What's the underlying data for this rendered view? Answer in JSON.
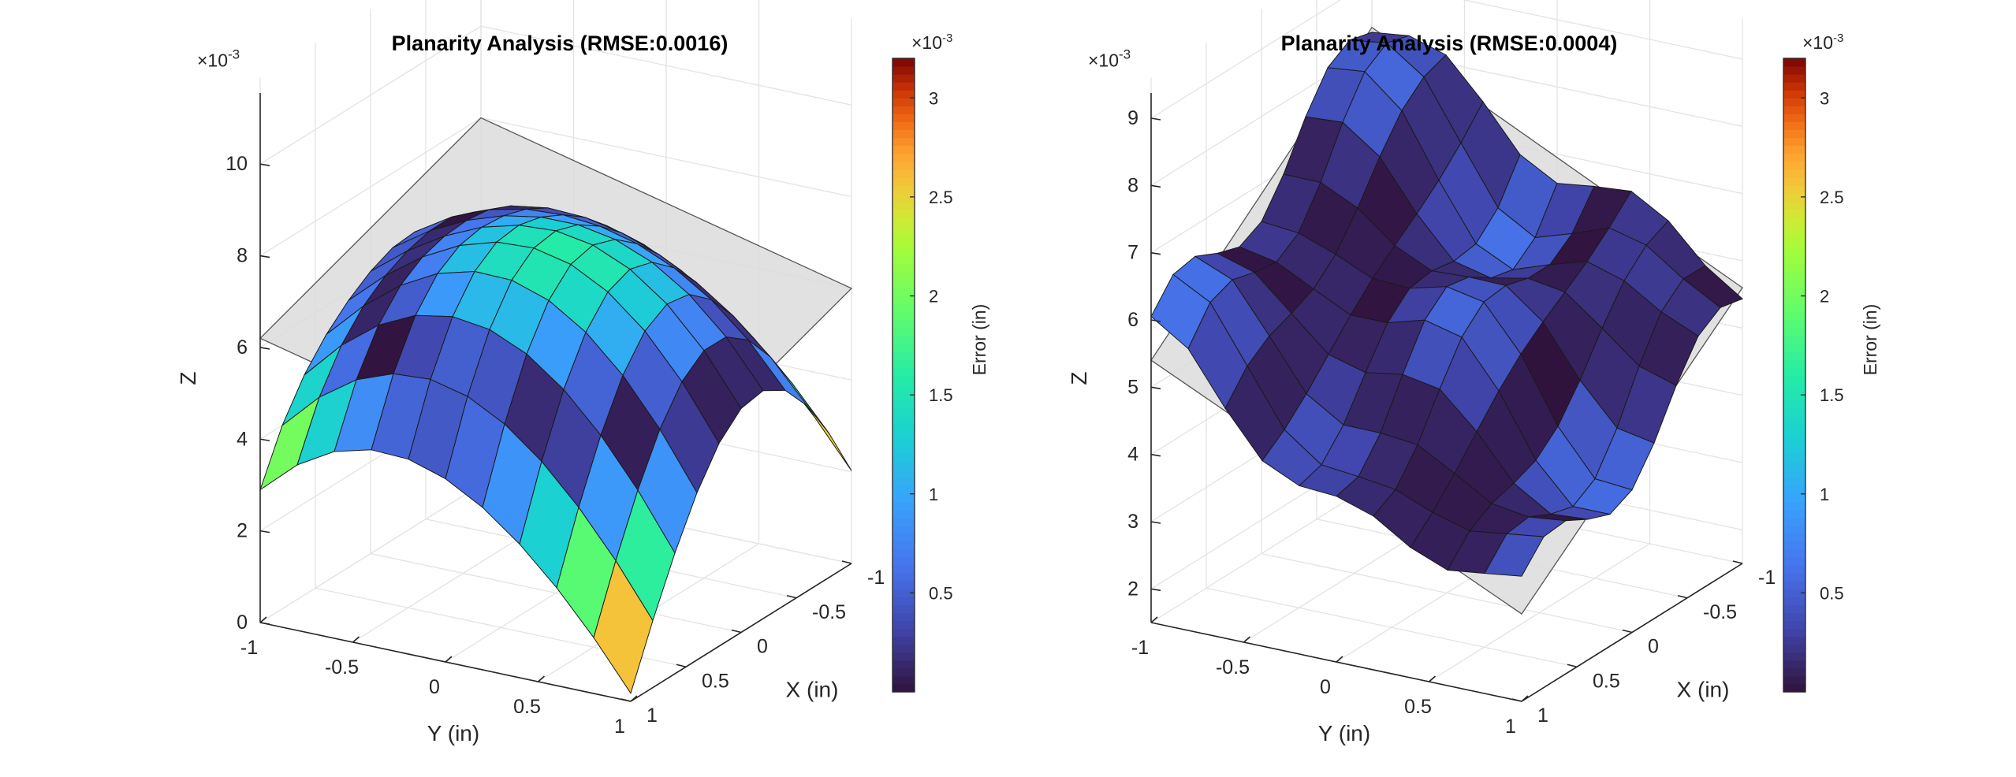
{
  "chart_data": [
    {
      "type": "surface",
      "title": "Planarity Analysis (RMSE:0.0016)",
      "xlabel": "X (in)",
      "ylabel": "Y (in)",
      "zlabel": "Z",
      "z_exponent_label": "×10",
      "z_exponent_power": "-3",
      "x_ticks": [
        "-1",
        "-0.5",
        "0",
        "0.5",
        "1"
      ],
      "y_ticks": [
        "-1",
        "-0.5",
        "0",
        "0.5",
        "1"
      ],
      "z_ticks": [
        "0",
        "2",
        "4",
        "6",
        "8",
        "10"
      ],
      "zlim": [
        0,
        11
      ],
      "xlim": [
        -1,
        1
      ],
      "ylim": [
        -1,
        1
      ],
      "grid": true,
      "colormap": "turbo",
      "colorbar": {
        "label": "Error (in)",
        "exponent_label": "×10",
        "exponent_power": "-3",
        "ticks": [
          "0.5",
          "1",
          "1.5",
          "2",
          "2.5",
          "3"
        ],
        "range": [
          0,
          3.2
        ]
      },
      "fit_plane": {
        "z_at_corners": {
          "x-1_y-1": 8.0,
          "x-1_y1": 6.0,
          "x1_y-1": 6.2,
          "x1_y1": 4.2
        },
        "color": "#dcdcdc"
      },
      "surface_z_range": [
        0.5,
        9.6
      ],
      "surface_shape": "dome"
    },
    {
      "type": "surface",
      "title": "Planarity Analysis (RMSE:0.0004)",
      "xlabel": "X (in)",
      "ylabel": "Y (in)",
      "zlabel": "Z",
      "z_exponent_label": "×10",
      "z_exponent_power": "-3",
      "x_ticks": [
        "-1",
        "-0.5",
        "0",
        "0.5",
        "1"
      ],
      "y_ticks": [
        "-1",
        "-0.5",
        "0",
        "0.5",
        "1"
      ],
      "z_ticks": [
        "2",
        "3",
        "4",
        "5",
        "6",
        "7",
        "8",
        "9"
      ],
      "zlim": [
        1.5,
        9
      ],
      "xlim": [
        -1,
        1
      ],
      "ylim": [
        -1,
        1
      ],
      "grid": true,
      "colormap": "turbo",
      "colorbar": {
        "label": "Error (in)",
        "exponent_label": "×10",
        "exponent_power": "-3",
        "ticks": [
          "0.5",
          "1",
          "1.5",
          "2",
          "2.5",
          "3"
        ],
        "range": [
          0,
          3.2
        ]
      },
      "fit_plane": {
        "z_at_corners": {
          "x-1_y-1": 8.3,
          "x-1_y1": 5.6,
          "x1_y-1": 5.4,
          "x1_y1": 2.8
        },
        "color": "#dcdcdc"
      },
      "surface_z_range": [
        2.5,
        8.3
      ],
      "surface_shape": "wavy"
    }
  ]
}
